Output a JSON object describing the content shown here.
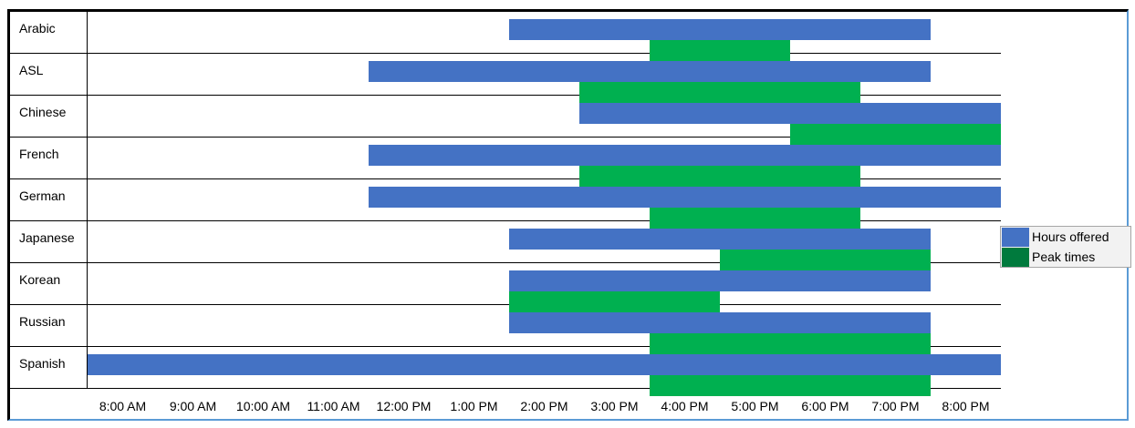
{
  "chart_data": {
    "type": "bar",
    "orientation": "horizontal-range",
    "categories": [
      "Arabic",
      "ASL",
      "Chinese",
      "French",
      "German",
      "Japanese",
      "Korean",
      "Russian",
      "Spanish"
    ],
    "x_ticks": [
      "8:00 AM",
      "9:00 AM",
      "10:00 AM",
      "11:00 AM",
      "12:00 PM",
      "1:00 PM",
      "2:00 PM",
      "3:00 PM",
      "4:00 PM",
      "5:00 PM",
      "6:00 PM",
      "7:00 PM",
      "8:00 PM"
    ],
    "xlim": [
      "7:30 AM",
      "8:30 PM"
    ],
    "grid": false,
    "legend_position": "right",
    "series": [
      {
        "name": "Hours offered",
        "color": "#4472c4",
        "ranges": [
          [
            "1:30 PM",
            "7:30 PM"
          ],
          [
            "11:30 AM",
            "7:30 PM"
          ],
          [
            "2:30 PM",
            "8:30 PM"
          ],
          [
            "11:30 AM",
            "8:30 PM"
          ],
          [
            "11:30 AM",
            "8:30 PM"
          ],
          [
            "1:30 PM",
            "7:30 PM"
          ],
          [
            "1:30 PM",
            "7:30 PM"
          ],
          [
            "1:30 PM",
            "7:30 PM"
          ],
          [
            "7:30 AM",
            "8:30 PM"
          ]
        ]
      },
      {
        "name": "Peak times",
        "color": "#00b050",
        "ranges": [
          [
            "3:30 PM",
            "5:30 PM"
          ],
          [
            "2:30 PM",
            "6:30 PM"
          ],
          [
            "5:30 PM",
            "8:30 PM"
          ],
          [
            "2:30 PM",
            "6:30 PM"
          ],
          [
            "3:30 PM",
            "6:30 PM"
          ],
          [
            "4:30 PM",
            "7:30 PM"
          ],
          [
            "1:30 PM",
            "4:30 PM"
          ],
          [
            "3:30 PM",
            "7:30 PM"
          ],
          [
            "3:30 PM",
            "7:30 PM"
          ]
        ]
      }
    ]
  },
  "legend": {
    "items": [
      {
        "label": "Hours offered",
        "color": "#4472c4"
      },
      {
        "label": "Peak times",
        "color": "#007a3d"
      }
    ]
  }
}
